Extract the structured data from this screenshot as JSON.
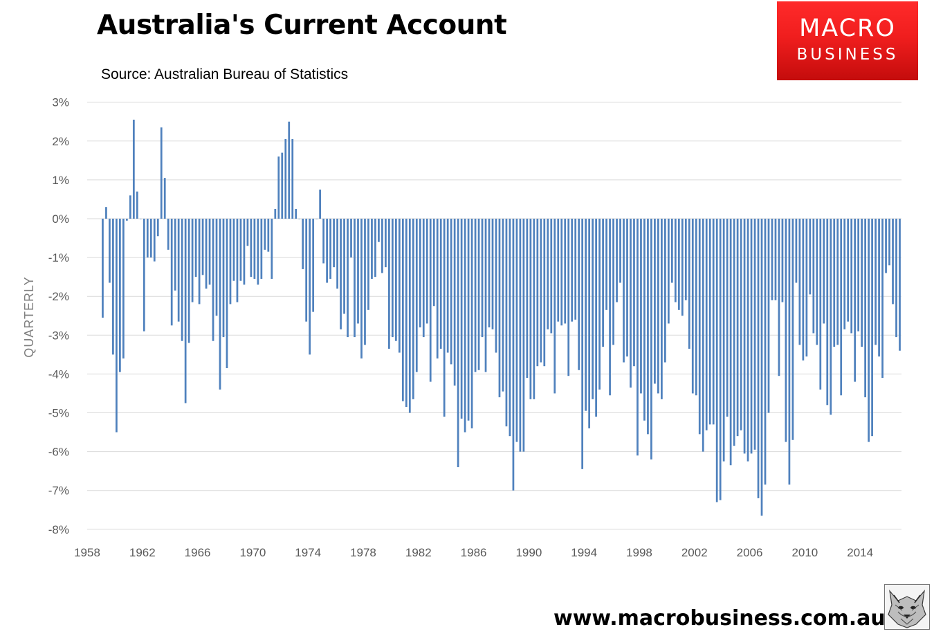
{
  "title": "Australia's Current Account",
  "subtitle": "Source: Australian Bureau of Statistics",
  "logo": {
    "line1": "MACRO",
    "line2": "BUSINESS",
    "color": "#e8191e"
  },
  "website": "www.macrobusiness.com.au",
  "chart_data": {
    "type": "bar",
    "ylabel": "QUARTERLY",
    "xlabel": "",
    "ylim": [
      -8,
      3
    ],
    "yticks": [
      3,
      2,
      1,
      0,
      -1,
      -2,
      -3,
      -4,
      -5,
      -6,
      -7,
      -8
    ],
    "ytick_labels": [
      "3%",
      "2%",
      "1%",
      "0%",
      "-1%",
      "-2%",
      "-3%",
      "-4%",
      "-5%",
      "-6%",
      "-7%",
      "-8%"
    ],
    "xticks": [
      1958,
      1962,
      1966,
      1970,
      1974,
      1978,
      1982,
      1986,
      1990,
      1994,
      1998,
      2002,
      2006,
      2010,
      2014
    ],
    "x_start": 1959,
    "x_step": 0.25,
    "grid": true,
    "bar_color": "#4f81bd",
    "series": [
      {
        "values": [
          -2.55,
          0.3,
          -1.65,
          -3.5,
          -5.5,
          -3.95,
          -3.6,
          -0.05,
          0.6,
          2.55,
          0.7,
          0,
          -2.9,
          -1,
          -1,
          -1.1,
          -0.45,
          2.35,
          1.05,
          -0.8,
          -2.75,
          -1.85,
          -2.65,
          -3.15,
          -4.75,
          -3.2,
          -2.15,
          -1.5,
          -2.2,
          -1.45,
          -1.8,
          -1.7,
          -3.15,
          -2.5,
          -4.4,
          -3.05,
          -3.85,
          -2.2,
          -1.6,
          -2.15,
          -1.6,
          -1.7,
          -0.7,
          -1.5,
          -1.55,
          -1.7,
          -1.55,
          -0.8,
          -0.85,
          -1.55,
          0.25,
          1.6,
          1.7,
          2.05,
          2.5,
          2.05,
          0.25,
          0,
          -1.3,
          -2.65,
          -3.5,
          -2.4,
          0,
          0.75,
          -1.15,
          -1.65,
          -1.55,
          -1.25,
          -1.8,
          -2.85,
          -2.45,
          -3.05,
          -1,
          -3.05,
          -2.7,
          -3.6,
          -3.25,
          -2.35,
          -1.55,
          -1.5,
          -0.6,
          -1.4,
          -1.25,
          -3.35,
          -3.05,
          -3.15,
          -3.45,
          -4.7,
          -4.85,
          -5,
          -4.65,
          -3.95,
          -2.8,
          -3.05,
          -2.7,
          -4.2,
          -2.25,
          -3.6,
          -3.35,
          -5.1,
          -3.45,
          -3.75,
          -4.3,
          -6.4,
          -5.15,
          -5.5,
          -5.2,
          -5.4,
          -3.95,
          -3.9,
          -3.05,
          -3.95,
          -2.8,
          -2.85,
          -3.45,
          -4.6,
          -4.45,
          -5.35,
          -5.6,
          -7,
          -5.75,
          -6,
          -6,
          -4.1,
          -4.65,
          -4.65,
          -3.8,
          -3.7,
          -3.8,
          -2.85,
          -2.95,
          -4.5,
          -2.65,
          -2.75,
          -2.7,
          -4.05,
          -2.65,
          -2.6,
          -3.9,
          -6.45,
          -4.95,
          -5.4,
          -4.65,
          -5.1,
          -4.4,
          -3.3,
          -2.35,
          -4.55,
          -3.25,
          -2.15,
          -1.65,
          -3.7,
          -3.55,
          -4.35,
          -3.8,
          -6.1,
          -4.5,
          -5.2,
          -5.55,
          -6.2,
          -4.25,
          -4.5,
          -4.65,
          -3.7,
          -2.7,
          -1.65,
          -2.15,
          -2.35,
          -2.5,
          -2.1,
          -3.35,
          -4.5,
          -4.55,
          -5.55,
          -6,
          -5.45,
          -5.3,
          -5.3,
          -7.3,
          -7.25,
          -6.25,
          -5.1,
          -6.35,
          -5.85,
          -5.6,
          -5.45,
          -6.05,
          -6.25,
          -6.05,
          -5.95,
          -7.2,
          -7.65,
          -6.85,
          -5,
          -2.1,
          -2.1,
          -4.05,
          -2.15,
          -5.75,
          -6.85,
          -5.7,
          -1.65,
          -3.25,
          -3.65,
          -3.55,
          -1.95,
          -2.95,
          -3.25,
          -4.4,
          -2.7,
          -4.8,
          -5.05,
          -3.3,
          -3.25,
          -4.55,
          -2.85,
          -2.65,
          -2.95,
          -4.2,
          -2.9,
          -3.3,
          -4.6,
          -5.75,
          -5.6,
          -3.25,
          -3.55,
          -4.1,
          -1.4,
          -1.2,
          -2.2,
          -3.05,
          -3.4
        ]
      }
    ]
  }
}
